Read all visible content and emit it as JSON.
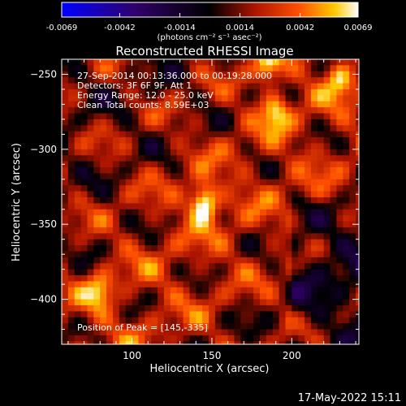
{
  "chart_data": {
    "type": "heatmap",
    "title": "Reconstructed RHESSI Image",
    "xlabel": "Heliocentric X (arcsec)",
    "ylabel": "Heliocentric Y (arcsec)",
    "xlim": [
      56,
      242
    ],
    "ylim": [
      -430,
      -240
    ],
    "x_ticks": [
      100,
      150,
      200
    ],
    "y_ticks": [
      -250,
      -300,
      -350,
      -400
    ],
    "colorbar": {
      "range": [
        -0.0069,
        0.0069
      ],
      "ticks": [
        -0.0069,
        -0.0042,
        -0.0014,
        0.0014,
        0.0042,
        0.0069
      ],
      "tick_labels": [
        "-0.0069",
        "-0.0042",
        "-0.0014",
        "0.0014",
        "0.0042",
        "0.0069"
      ],
      "unit_label": "(photons cm⁻² s⁻¹ asec⁻²)"
    },
    "info_lines": [
      "27-Sep-2014 00:13:36.000 to 00:19:28.000",
      "Detectors: 3F 6F 9F, Att 1",
      "Energy Range: 12.0 - 25.0 keV",
      "Clean    Total counts: 8.59E+03"
    ],
    "peak_label": "Position of Peak = [145,-335]",
    "peak": {
      "x": 145,
      "y": -335,
      "value": 0.0069
    },
    "sources": [
      {
        "x": 145,
        "y": -335,
        "value": 0.0069
      },
      {
        "x": 185,
        "y": -245,
        "value": 0.0045
      },
      {
        "x": 190,
        "y": -275,
        "value": 0.004
      },
      {
        "x": 230,
        "y": -253,
        "value": 0.0035
      },
      {
        "x": 80,
        "y": -395,
        "value": 0.0035
      }
    ],
    "colors": [
      "#0000ff",
      "#30006a",
      "#000000",
      "#aa1400",
      "#ff5000",
      "#ffc800",
      "#ffffff"
    ]
  },
  "timestamp": "17-May-2022 15:11"
}
